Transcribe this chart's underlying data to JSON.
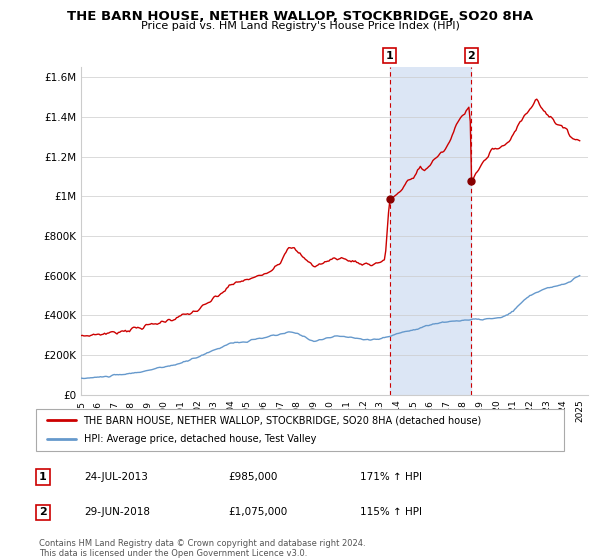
{
  "title": "THE BARN HOUSE, NETHER WALLOP, STOCKBRIDGE, SO20 8HA",
  "subtitle": "Price paid vs. HM Land Registry's House Price Index (HPI)",
  "ylabel_ticks": [
    "£0",
    "£200K",
    "£400K",
    "£600K",
    "£800K",
    "£1M",
    "£1.2M",
    "£1.4M",
    "£1.6M"
  ],
  "ytick_vals": [
    0,
    200000,
    400000,
    600000,
    800000,
    1000000,
    1200000,
    1400000,
    1600000
  ],
  "ylim": [
    0,
    1650000
  ],
  "xlim_start": 1995.0,
  "xlim_end": 2025.5,
  "legend_line1": "THE BARN HOUSE, NETHER WALLOP, STOCKBRIDGE, SO20 8HA (detached house)",
  "legend_line2": "HPI: Average price, detached house, Test Valley",
  "transaction1_date": "24-JUL-2013",
  "transaction1_price": "£985,000",
  "transaction1_hpi": "171% ↑ HPI",
  "transaction2_date": "29-JUN-2018",
  "transaction2_price": "£1,075,000",
  "transaction2_hpi": "115% ↑ HPI",
  "footer": "Contains HM Land Registry data © Crown copyright and database right 2024.\nThis data is licensed under the Open Government Licence v3.0.",
  "red_color": "#cc0000",
  "blue_color": "#6699cc",
  "shaded_region_color": "#dce6f5",
  "transaction1_x": 2013.56,
  "transaction2_x": 2018.49,
  "transaction1_y": 985000,
  "transaction2_y": 1075000
}
